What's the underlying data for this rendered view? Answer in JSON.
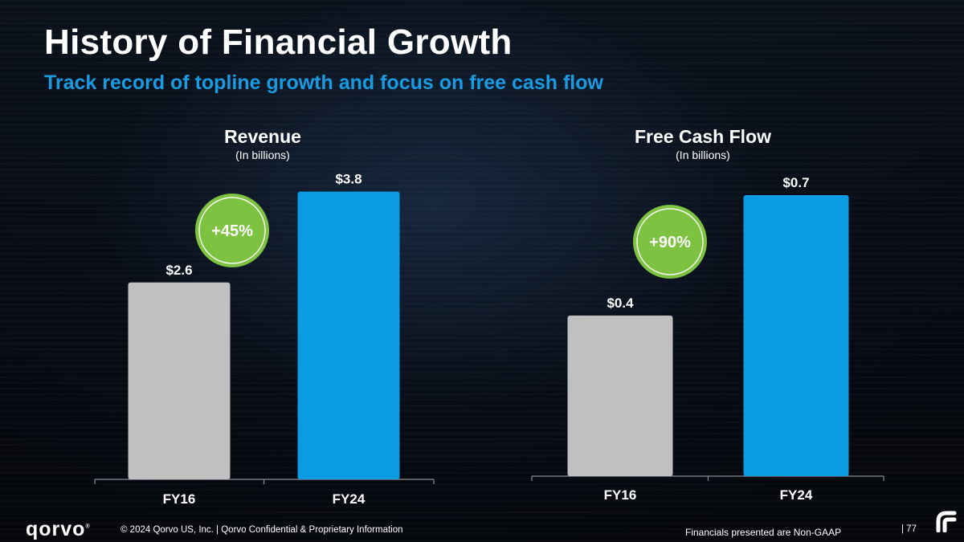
{
  "slide": {
    "title": "History of Financial Growth",
    "subtitle": "Track record of topline growth and focus on free cash flow"
  },
  "chart_data": [
    {
      "type": "bar",
      "title": "Revenue",
      "subtitle": "(In billions)",
      "categories": [
        "FY16",
        "FY24"
      ],
      "values": [
        2.6,
        3.8
      ],
      "value_labels": [
        "$2.6",
        "$3.8"
      ],
      "bar_colors": [
        "#c0c0c0",
        "#0a9be2"
      ],
      "growth_badge": "+45%",
      "ylim": [
        0,
        4.4
      ]
    },
    {
      "type": "bar",
      "title": "Free Cash Flow",
      "subtitle": "(In billions)",
      "categories": [
        "FY16",
        "FY24"
      ],
      "values": [
        0.4,
        0.7
      ],
      "value_labels": [
        "$0.4",
        "$0.7"
      ],
      "bar_colors": [
        "#c0c0c0",
        "#0a9be2"
      ],
      "growth_badge": "+90%",
      "ylim": [
        0,
        0.83
      ]
    }
  ],
  "colors": {
    "accent_blue": "#1a9ae0",
    "badge_green": "#7ec242",
    "bar_gray": "#c0c0c0",
    "bar_blue": "#0a9be2"
  },
  "footer": {
    "logo": "qorvo",
    "copyright": "© 2024 Qorvo US, Inc. | Qorvo Confidential & Proprietary Information",
    "note": "Financials presented are Non-GAAP",
    "page": "| 77"
  }
}
